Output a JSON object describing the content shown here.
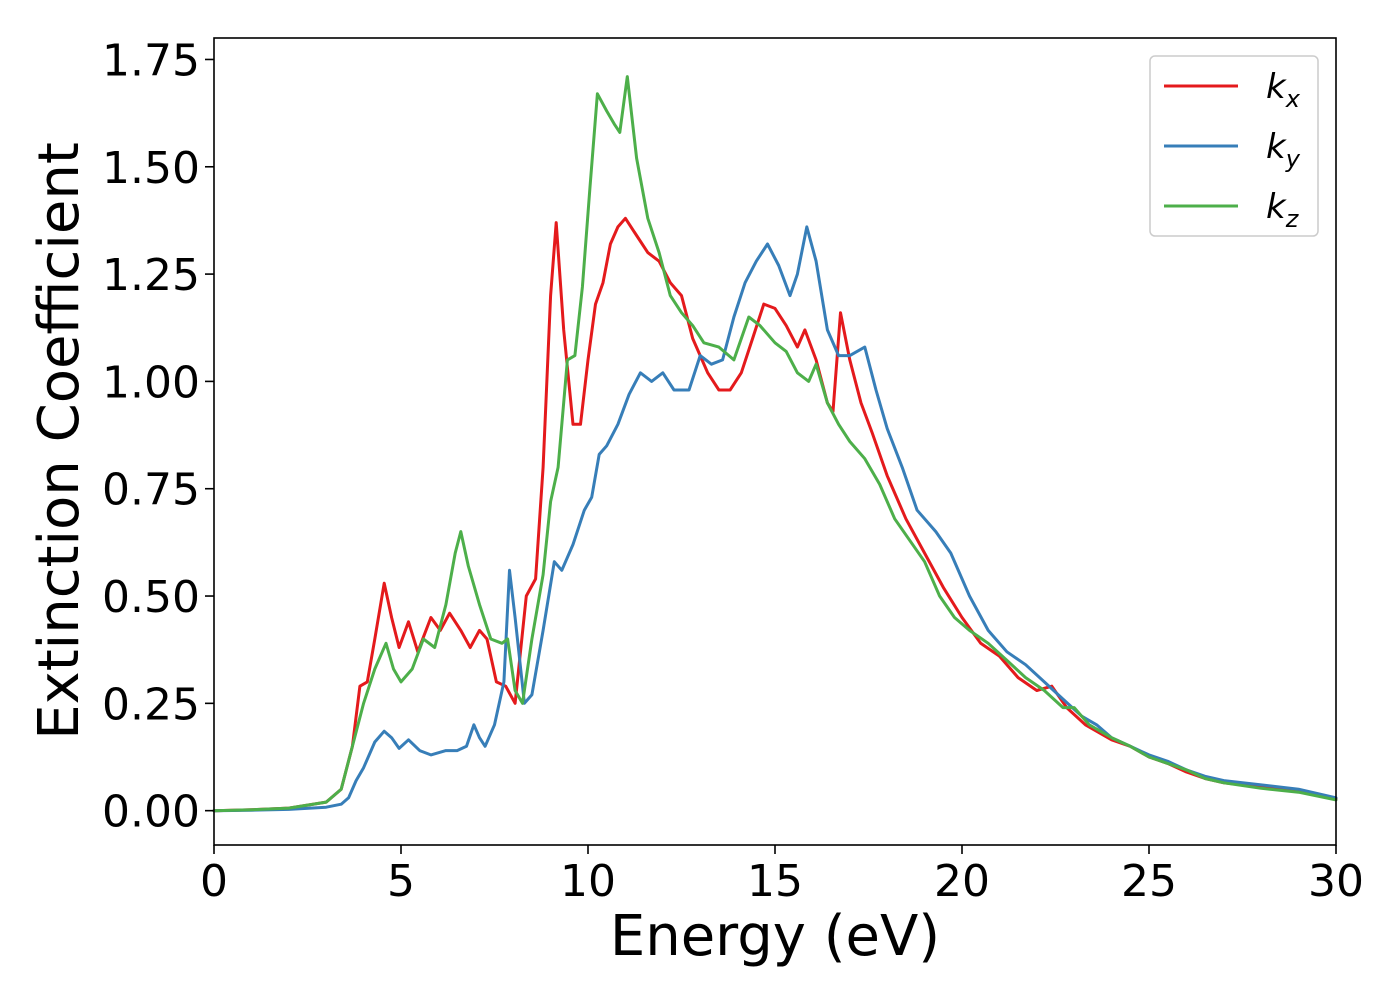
{
  "chart_data": {
    "type": "line",
    "xlabel": "Energy (eV)",
    "ylabel": "Extinction Coefficient",
    "xlim": [
      0,
      30
    ],
    "ylim": [
      -0.08,
      1.8
    ],
    "xticks": [
      0,
      5,
      10,
      15,
      20,
      25,
      30
    ],
    "xtick_labels": [
      "0",
      "5",
      "10",
      "15",
      "20",
      "25",
      "30"
    ],
    "yticks": [
      0.0,
      0.25,
      0.5,
      0.75,
      1.0,
      1.25,
      1.5,
      1.75
    ],
    "ytick_labels": [
      "0.00",
      "0.25",
      "0.50",
      "0.75",
      "1.00",
      "1.25",
      "1.50",
      "1.75"
    ],
    "grid": false,
    "legend_position": "top-right",
    "series": [
      {
        "name": "k",
        "subscript": "x",
        "color": "#e41a1c",
        "points": [
          [
            0,
            0.0
          ],
          [
            1,
            0.002
          ],
          [
            2,
            0.006
          ],
          [
            3,
            0.02
          ],
          [
            3.4,
            0.05
          ],
          [
            3.7,
            0.15
          ],
          [
            3.9,
            0.29
          ],
          [
            4.1,
            0.3
          ],
          [
            4.3,
            0.4
          ],
          [
            4.55,
            0.53
          ],
          [
            4.75,
            0.45
          ],
          [
            4.95,
            0.38
          ],
          [
            5.2,
            0.44
          ],
          [
            5.45,
            0.37
          ],
          [
            5.8,
            0.45
          ],
          [
            6.05,
            0.42
          ],
          [
            6.3,
            0.46
          ],
          [
            6.6,
            0.42
          ],
          [
            6.85,
            0.38
          ],
          [
            7.1,
            0.42
          ],
          [
            7.3,
            0.4
          ],
          [
            7.55,
            0.3
          ],
          [
            7.8,
            0.29
          ],
          [
            8.05,
            0.25
          ],
          [
            8.35,
            0.5
          ],
          [
            8.6,
            0.54
          ],
          [
            8.8,
            0.8
          ],
          [
            9.0,
            1.2
          ],
          [
            9.15,
            1.37
          ],
          [
            9.35,
            1.12
          ],
          [
            9.6,
            0.9
          ],
          [
            9.8,
            0.9
          ],
          [
            10.0,
            1.05
          ],
          [
            10.2,
            1.18
          ],
          [
            10.4,
            1.23
          ],
          [
            10.6,
            1.32
          ],
          [
            10.8,
            1.36
          ],
          [
            11.0,
            1.38
          ],
          [
            11.3,
            1.34
          ],
          [
            11.6,
            1.3
          ],
          [
            11.9,
            1.28
          ],
          [
            12.2,
            1.23
          ],
          [
            12.5,
            1.2
          ],
          [
            12.8,
            1.1
          ],
          [
            13.0,
            1.06
          ],
          [
            13.2,
            1.02
          ],
          [
            13.5,
            0.98
          ],
          [
            13.8,
            0.98
          ],
          [
            14.1,
            1.02
          ],
          [
            14.4,
            1.1
          ],
          [
            14.7,
            1.18
          ],
          [
            15.0,
            1.17
          ],
          [
            15.3,
            1.13
          ],
          [
            15.6,
            1.08
          ],
          [
            15.8,
            1.12
          ],
          [
            16.1,
            1.05
          ],
          [
            16.4,
            0.95
          ],
          [
            16.55,
            0.93
          ],
          [
            16.75,
            1.16
          ],
          [
            17.0,
            1.05
          ],
          [
            17.3,
            0.95
          ],
          [
            17.6,
            0.88
          ],
          [
            18.0,
            0.78
          ],
          [
            18.5,
            0.68
          ],
          [
            19.0,
            0.6
          ],
          [
            19.5,
            0.52
          ],
          [
            20.0,
            0.45
          ],
          [
            20.5,
            0.39
          ],
          [
            21.0,
            0.36
          ],
          [
            21.5,
            0.31
          ],
          [
            22.0,
            0.28
          ],
          [
            22.4,
            0.29
          ],
          [
            22.8,
            0.24
          ],
          [
            23.3,
            0.2
          ],
          [
            24.0,
            0.165
          ],
          [
            24.5,
            0.15
          ],
          [
            25.0,
            0.125
          ],
          [
            25.5,
            0.11
          ],
          [
            26.0,
            0.09
          ],
          [
            26.5,
            0.075
          ],
          [
            27.0,
            0.065
          ],
          [
            28.0,
            0.055
          ],
          [
            29.0,
            0.045
          ],
          [
            30.0,
            0.028
          ]
        ]
      },
      {
        "name": "k",
        "subscript": "y",
        "color": "#377eb8",
        "points": [
          [
            0,
            0.0
          ],
          [
            1,
            0.001
          ],
          [
            2,
            0.003
          ],
          [
            3,
            0.008
          ],
          [
            3.4,
            0.015
          ],
          [
            3.6,
            0.03
          ],
          [
            3.8,
            0.07
          ],
          [
            4.0,
            0.1
          ],
          [
            4.3,
            0.16
          ],
          [
            4.55,
            0.185
          ],
          [
            4.75,
            0.17
          ],
          [
            4.95,
            0.145
          ],
          [
            5.2,
            0.165
          ],
          [
            5.5,
            0.14
          ],
          [
            5.8,
            0.13
          ],
          [
            6.2,
            0.14
          ],
          [
            6.5,
            0.14
          ],
          [
            6.75,
            0.15
          ],
          [
            6.95,
            0.2
          ],
          [
            7.1,
            0.17
          ],
          [
            7.25,
            0.15
          ],
          [
            7.5,
            0.2
          ],
          [
            7.75,
            0.3
          ],
          [
            7.9,
            0.56
          ],
          [
            8.05,
            0.45
          ],
          [
            8.3,
            0.25
          ],
          [
            8.5,
            0.27
          ],
          [
            8.8,
            0.42
          ],
          [
            9.1,
            0.58
          ],
          [
            9.3,
            0.56
          ],
          [
            9.6,
            0.62
          ],
          [
            9.9,
            0.7
          ],
          [
            10.1,
            0.73
          ],
          [
            10.3,
            0.83
          ],
          [
            10.5,
            0.85
          ],
          [
            10.8,
            0.9
          ],
          [
            11.1,
            0.97
          ],
          [
            11.4,
            1.02
          ],
          [
            11.7,
            1.0
          ],
          [
            12.0,
            1.02
          ],
          [
            12.3,
            0.98
          ],
          [
            12.7,
            0.98
          ],
          [
            13.0,
            1.06
          ],
          [
            13.3,
            1.04
          ],
          [
            13.6,
            1.05
          ],
          [
            13.9,
            1.15
          ],
          [
            14.2,
            1.23
          ],
          [
            14.5,
            1.28
          ],
          [
            14.8,
            1.32
          ],
          [
            15.1,
            1.27
          ],
          [
            15.4,
            1.2
          ],
          [
            15.6,
            1.25
          ],
          [
            15.85,
            1.36
          ],
          [
            16.1,
            1.28
          ],
          [
            16.4,
            1.12
          ],
          [
            16.7,
            1.06
          ],
          [
            17.0,
            1.06
          ],
          [
            17.4,
            1.08
          ],
          [
            17.7,
            0.98
          ],
          [
            18.0,
            0.89
          ],
          [
            18.4,
            0.8
          ],
          [
            18.8,
            0.7
          ],
          [
            19.3,
            0.65
          ],
          [
            19.7,
            0.6
          ],
          [
            20.2,
            0.5
          ],
          [
            20.7,
            0.42
          ],
          [
            21.2,
            0.37
          ],
          [
            21.7,
            0.34
          ],
          [
            22.2,
            0.3
          ],
          [
            22.7,
            0.26
          ],
          [
            23.2,
            0.22
          ],
          [
            23.6,
            0.2
          ],
          [
            24.0,
            0.17
          ],
          [
            24.5,
            0.15
          ],
          [
            25.0,
            0.13
          ],
          [
            25.5,
            0.115
          ],
          [
            26.0,
            0.095
          ],
          [
            26.5,
            0.08
          ],
          [
            27.0,
            0.07
          ],
          [
            28.0,
            0.06
          ],
          [
            29.0,
            0.05
          ],
          [
            30.0,
            0.03
          ]
        ]
      },
      {
        "name": "k",
        "subscript": "z",
        "color": "#4daf4a",
        "points": [
          [
            0,
            0.0
          ],
          [
            1,
            0.002
          ],
          [
            2,
            0.006
          ],
          [
            3,
            0.02
          ],
          [
            3.4,
            0.05
          ],
          [
            3.7,
            0.15
          ],
          [
            4.0,
            0.25
          ],
          [
            4.3,
            0.33
          ],
          [
            4.6,
            0.39
          ],
          [
            4.8,
            0.33
          ],
          [
            5.0,
            0.3
          ],
          [
            5.3,
            0.33
          ],
          [
            5.6,
            0.4
          ],
          [
            5.9,
            0.38
          ],
          [
            6.2,
            0.48
          ],
          [
            6.45,
            0.6
          ],
          [
            6.6,
            0.65
          ],
          [
            6.8,
            0.57
          ],
          [
            7.1,
            0.48
          ],
          [
            7.4,
            0.4
          ],
          [
            7.7,
            0.39
          ],
          [
            7.85,
            0.4
          ],
          [
            8.05,
            0.28
          ],
          [
            8.25,
            0.25
          ],
          [
            8.5,
            0.4
          ],
          [
            8.8,
            0.55
          ],
          [
            9.0,
            0.72
          ],
          [
            9.2,
            0.8
          ],
          [
            9.45,
            1.05
          ],
          [
            9.65,
            1.06
          ],
          [
            9.85,
            1.22
          ],
          [
            10.05,
            1.45
          ],
          [
            10.25,
            1.67
          ],
          [
            10.5,
            1.63
          ],
          [
            10.7,
            1.6
          ],
          [
            10.85,
            1.58
          ],
          [
            11.05,
            1.71
          ],
          [
            11.3,
            1.52
          ],
          [
            11.6,
            1.38
          ],
          [
            11.9,
            1.3
          ],
          [
            12.2,
            1.2
          ],
          [
            12.5,
            1.16
          ],
          [
            12.8,
            1.13
          ],
          [
            13.1,
            1.09
          ],
          [
            13.5,
            1.08
          ],
          [
            13.9,
            1.05
          ],
          [
            14.3,
            1.15
          ],
          [
            14.6,
            1.13
          ],
          [
            15.0,
            1.09
          ],
          [
            15.3,
            1.07
          ],
          [
            15.6,
            1.02
          ],
          [
            15.9,
            1.0
          ],
          [
            16.1,
            1.04
          ],
          [
            16.4,
            0.95
          ],
          [
            16.7,
            0.9
          ],
          [
            17.0,
            0.86
          ],
          [
            17.4,
            0.82
          ],
          [
            17.8,
            0.76
          ],
          [
            18.2,
            0.68
          ],
          [
            18.6,
            0.63
          ],
          [
            19.0,
            0.58
          ],
          [
            19.4,
            0.5
          ],
          [
            19.8,
            0.45
          ],
          [
            20.2,
            0.42
          ],
          [
            20.7,
            0.39
          ],
          [
            21.2,
            0.35
          ],
          [
            21.7,
            0.31
          ],
          [
            22.2,
            0.28
          ],
          [
            22.7,
            0.24
          ],
          [
            23.0,
            0.24
          ],
          [
            23.4,
            0.2
          ],
          [
            24.0,
            0.17
          ],
          [
            24.5,
            0.15
          ],
          [
            25.0,
            0.125
          ],
          [
            25.5,
            0.11
          ],
          [
            26.0,
            0.095
          ],
          [
            26.5,
            0.075
          ],
          [
            27.0,
            0.065
          ],
          [
            28.0,
            0.052
          ],
          [
            29.0,
            0.043
          ],
          [
            30.0,
            0.025
          ]
        ]
      }
    ]
  }
}
